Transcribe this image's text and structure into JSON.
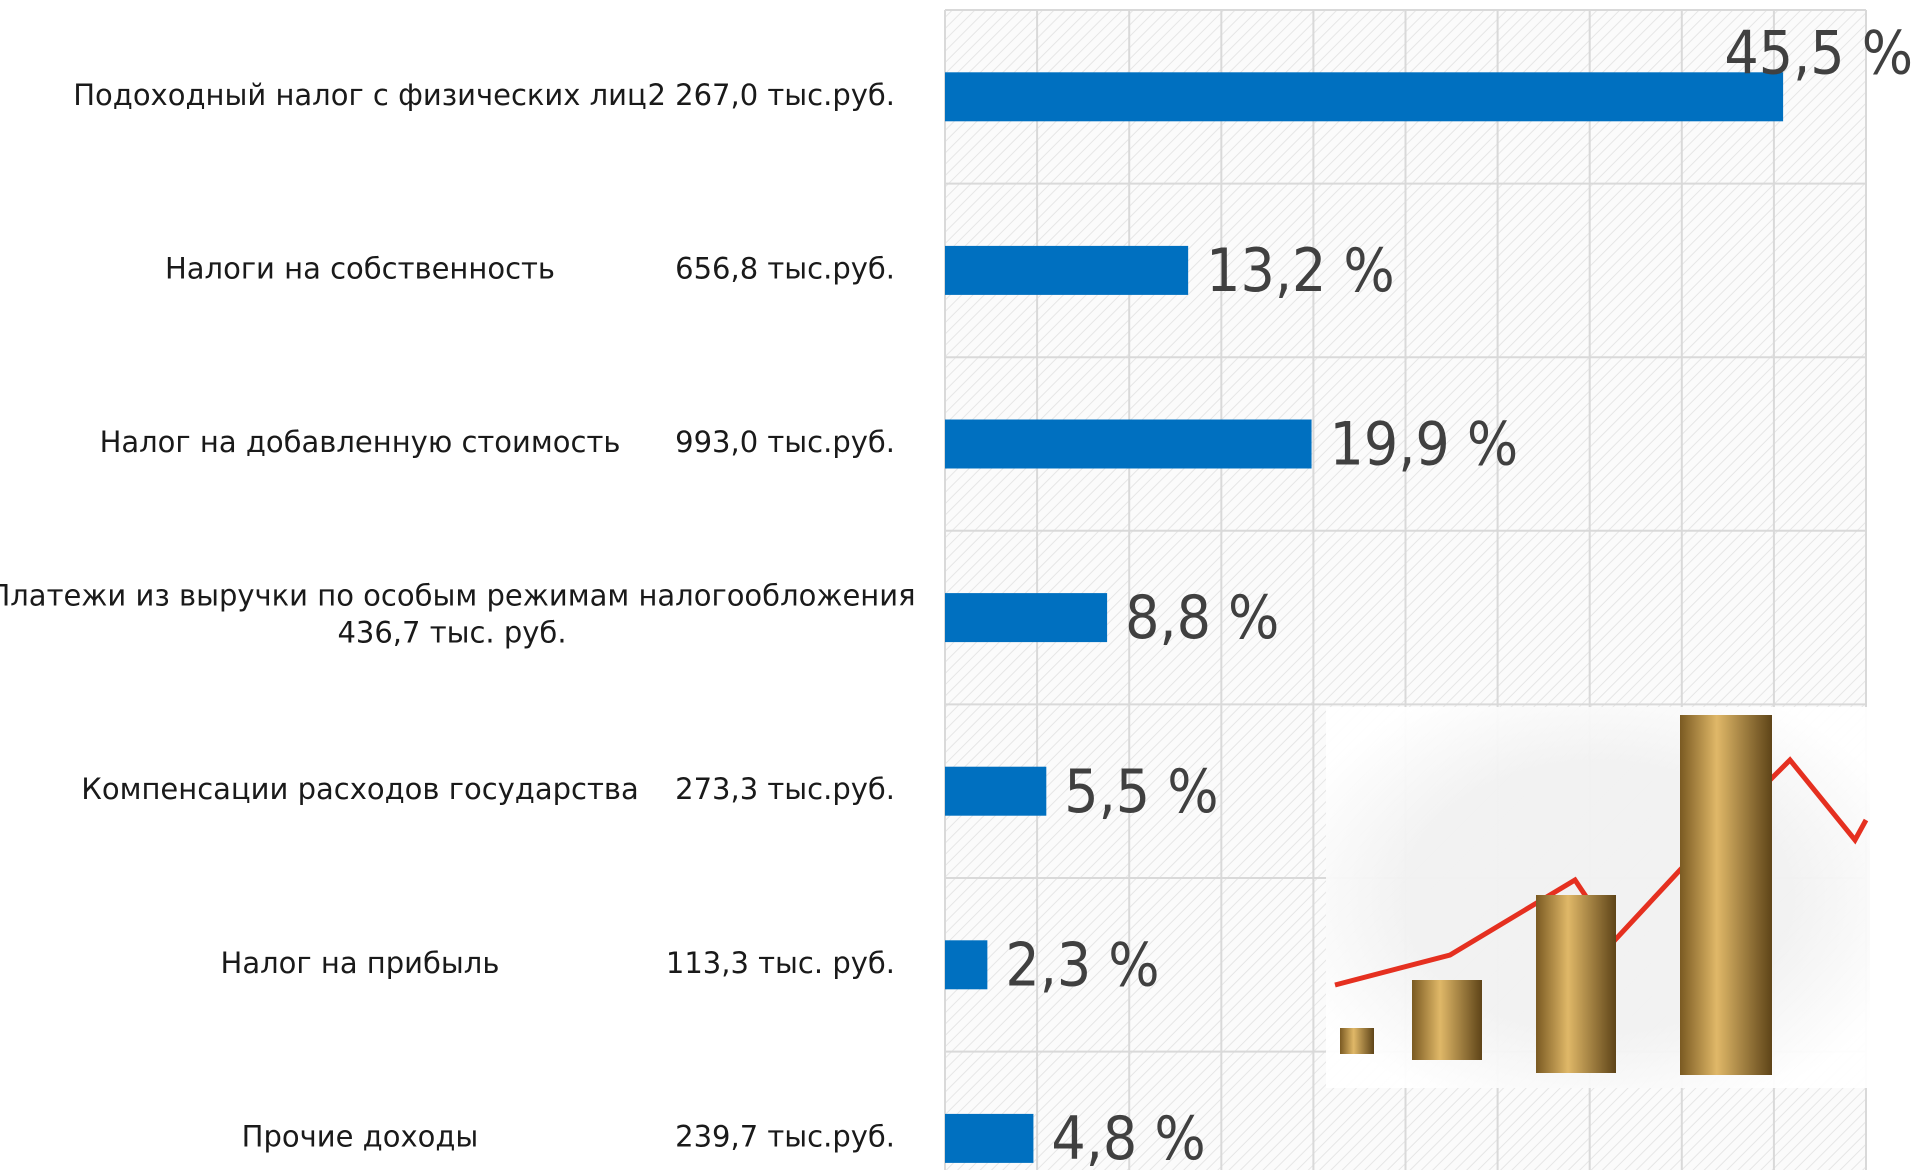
{
  "chart_data": {
    "type": "bar",
    "orientation": "horizontal",
    "categories": [
      "Подоходный налог с физических лиц",
      "Налоги на собственность",
      "Налог на добавленную стоимость",
      "Платежи из выручки по особым режимам налогообложения",
      "Компенсации расходов государства",
      "Налог на прибыль",
      "Прочие доходы"
    ],
    "amounts": [
      "2 267,0 тыс.руб.",
      "656,8 тыс.руб.",
      "993,0 тыс.руб.",
      "436,7 тыс. руб.",
      "273,3 тыс.руб.",
      "113,3 тыс. руб.",
      "239,7 тыс.руб."
    ],
    "values": [
      45.5,
      13.2,
      19.9,
      8.8,
      5.5,
      2.3,
      4.8
    ],
    "value_labels": [
      "45,5 %",
      "13,2 %",
      "19,9 %",
      "8,8 %",
      "5,5 %",
      "2,3 %",
      "4,8 %"
    ],
    "color": "#0070c0",
    "xlim": [
      0,
      50
    ],
    "xticks": [
      0,
      5,
      10,
      15,
      20,
      25,
      30,
      35,
      40,
      45,
      50
    ],
    "grid": true
  }
}
